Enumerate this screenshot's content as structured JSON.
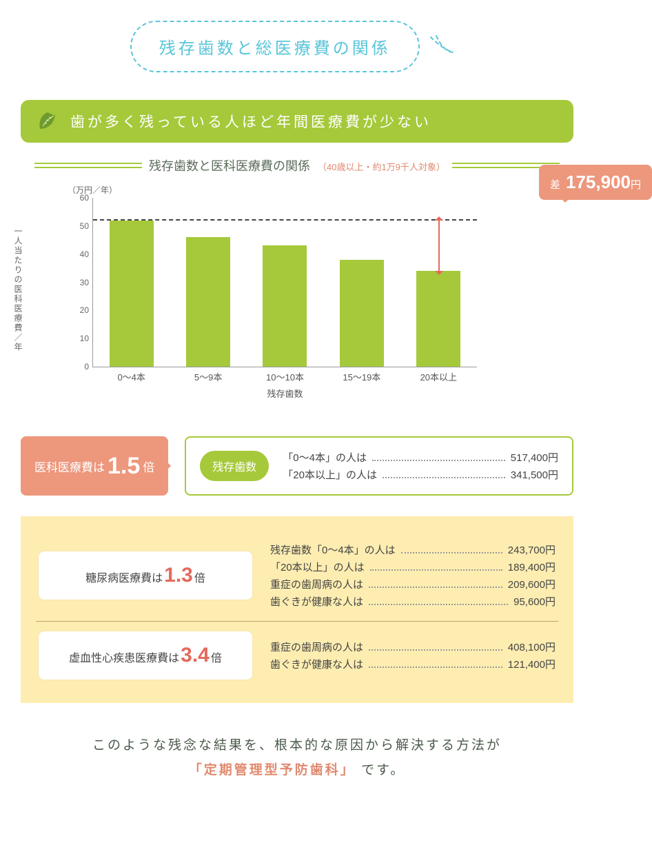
{
  "bubble": {
    "title": "残存歯数と総医療費の関係",
    "border_color": "#59c5d9",
    "text_color": "#59c5d9"
  },
  "headline": {
    "text": "歯が多く残っている人ほど年間医療費が少ない",
    "bg_color": "#a5c93a"
  },
  "subtitle": {
    "main": "残存歯数と医科医療費の関係",
    "note": "（40歳以上・約1万9千人対象）"
  },
  "chart": {
    "unit_label": "（万円／年）",
    "y_axis_label": "一人当たりの医科医療費／年",
    "x_axis_label": "残存歯数",
    "ylim": [
      0,
      60
    ],
    "yticks": [
      0,
      10,
      20,
      30,
      40,
      50,
      60
    ],
    "categories": [
      "0～4本",
      "5～9本",
      "10～10本",
      "15～19本",
      "20本以上"
    ],
    "values": [
      52,
      46,
      43,
      38,
      34
    ],
    "bar_color": "#a5c93a",
    "reference_value": 52,
    "callout": {
      "prefix": "差",
      "value": "175,900",
      "suffix": "円",
      "bg": "#ed977d"
    }
  },
  "highlight": {
    "left_prefix": "医科医療費は",
    "left_value": "1.5",
    "left_suffix": "倍",
    "pill": "残存歯数",
    "rows": [
      {
        "k": "「0～4本」の人は",
        "v": "517,400円"
      },
      {
        "k": "「20本以上」の人は",
        "v": "341,500円"
      }
    ],
    "bg": "#ed977d",
    "border": "#a5c93a"
  },
  "info": {
    "bg": "#fdedb1",
    "sections": [
      {
        "left_prefix": "糖尿病医療費は",
        "left_value": "1.3",
        "left_suffix": "倍",
        "rows": [
          {
            "k": "残存歯数「0～4本」の人は",
            "v": "243,700円"
          },
          {
            "k": "「20本以上」の人は",
            "v": "189,400円"
          },
          {
            "k": "重症の歯周病の人は",
            "v": "209,600円"
          },
          {
            "k": "歯ぐきが健康な人は",
            "v": "95,600円"
          }
        ]
      },
      {
        "left_prefix": "虚血性心疾患医療費は",
        "left_value": "3.4",
        "left_suffix": "倍",
        "rows": [
          {
            "k": "重症の歯周病の人は",
            "v": "408,100円"
          },
          {
            "k": "歯ぐきが健康な人は",
            "v": "121,400円"
          }
        ]
      }
    ]
  },
  "closing": {
    "line1": "このような残念な結果を、根本的な原因から解決する方法が",
    "accent": "「定期管理型予防歯科」",
    "line2_suffix": "です。"
  }
}
